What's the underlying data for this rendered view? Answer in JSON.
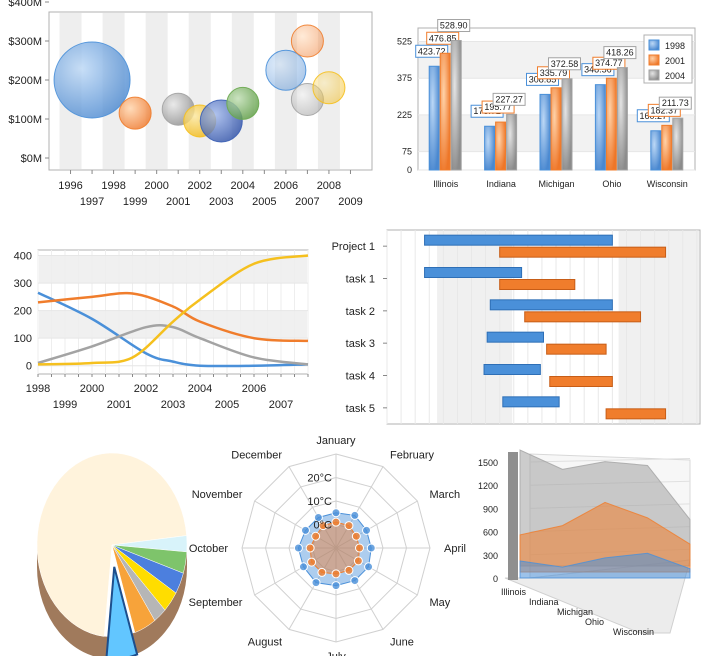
{
  "colors": {
    "blue": "#4a90d9",
    "orange": "#f07d2c",
    "gray": "#a3a3a3",
    "yellow": "#f5c01e",
    "green": "#6aa84f",
    "navy": "#3b5fb5",
    "stripe": "#eeeeee"
  },
  "chart_data": [
    {
      "type": "scatter",
      "subtype": "bubble",
      "x_ticks_top": [
        "1996",
        "1998",
        "2000",
        "2002",
        "2004",
        "2006",
        "2008"
      ],
      "x_ticks_bottom": [
        "1997",
        "1999",
        "2001",
        "2003",
        "2005",
        "2007",
        "2009"
      ],
      "y_ticks": [
        "$0M",
        "$100M",
        "$200M",
        "$300M",
        "$400M"
      ],
      "ylim": [
        0,
        400
      ],
      "xlim": [
        1995,
        2010
      ],
      "stripes": true,
      "points": [
        {
          "x": 1997.0,
          "y": 200,
          "size": 38,
          "color": "blue"
        },
        {
          "x": 1999.0,
          "y": 115,
          "size": 16,
          "color": "orange"
        },
        {
          "x": 2001.0,
          "y": 125,
          "size": 16,
          "color": "gray"
        },
        {
          "x": 2002.0,
          "y": 95,
          "size": 16,
          "color": "yellow"
        },
        {
          "x": 2003.0,
          "y": 95,
          "size": 21,
          "color": "navy"
        },
        {
          "x": 2004.0,
          "y": 140,
          "size": 16,
          "color": "green"
        },
        {
          "x": 2006.0,
          "y": 225,
          "size": 20,
          "color": "blue"
        },
        {
          "x": 2007.0,
          "y": 300,
          "size": 16,
          "color": "orange"
        },
        {
          "x": 2007.0,
          "y": 150,
          "size": 16,
          "color": "gray"
        },
        {
          "x": 2008.0,
          "y": 180,
          "size": 16,
          "color": "yellow"
        }
      ]
    },
    {
      "type": "bar",
      "categories": [
        "Illinois",
        "Indiana",
        "Michigan",
        "Ohio",
        "Wisconsin"
      ],
      "series": [
        {
          "name": "1998",
          "color": "blue",
          "values": [
            423.72,
            178.72,
            308.85,
            348.56,
            160.27
          ]
        },
        {
          "name": "2001",
          "color": "orange",
          "values": [
            476.85,
            195.77,
            335.79,
            374.77,
            182.37
          ]
        },
        {
          "name": "2004",
          "color": "gray",
          "values": [
            528.9,
            227.27,
            372.58,
            418.26,
            211.73
          ]
        }
      ],
      "y_ticks": [
        "0",
        "75",
        "225",
        "375",
        "525"
      ],
      "y_tick_values": [
        0,
        75,
        225,
        375,
        525
      ],
      "ylim": [
        0,
        580
      ],
      "legend": "top-right",
      "labeled": {
        "1998": [
          true,
          true,
          true,
          true,
          true
        ],
        "2001": [
          true,
          true,
          true,
          true,
          true
        ],
        "2004": [
          true,
          true,
          true,
          true,
          true
        ]
      }
    },
    {
      "type": "line",
      "subtype": "spline",
      "x_ticks_top": [
        "1998",
        "2000",
        "2002",
        "2004",
        "2006"
      ],
      "x_ticks_bottom": [
        "1999",
        "2001",
        "2003",
        "2005",
        "2007"
      ],
      "xlim": [
        1998,
        2008
      ],
      "y_ticks": [
        "0",
        "100",
        "200",
        "300",
        "400"
      ],
      "ylim": [
        -30,
        420
      ],
      "series": [
        {
          "color": "blue",
          "x": [
            1998,
            2000,
            2002,
            2003,
            2004,
            2006,
            2008
          ],
          "values": [
            265,
            170,
            45,
            15,
            0,
            0,
            5
          ]
        },
        {
          "color": "orange",
          "x": [
            1998,
            2000,
            2001.5,
            2003,
            2004,
            2006,
            2008
          ],
          "values": [
            230,
            250,
            262,
            215,
            160,
            100,
            90
          ]
        },
        {
          "color": "gray",
          "x": [
            1998,
            2000,
            2002,
            2003,
            2004,
            2006,
            2008
          ],
          "values": [
            10,
            70,
            140,
            140,
            100,
            30,
            5
          ]
        },
        {
          "color": "yellow",
          "x": [
            1998,
            2000,
            2001.5,
            2003,
            2004,
            2006,
            2008
          ],
          "values": [
            5,
            10,
            30,
            160,
            240,
            370,
            400
          ]
        }
      ]
    },
    {
      "type": "bar",
      "subtype": "gantt",
      "tasks": [
        "Project 1",
        "task 1",
        "task 2",
        "task 3",
        "task 4",
        "task 5"
      ],
      "xlim": [
        0,
        100
      ],
      "bars": [
        {
          "task": 0,
          "color": "blue",
          "start": 12,
          "end": 72
        },
        {
          "task": 0,
          "color": "orange",
          "start": 36,
          "end": 89
        },
        {
          "task": 1,
          "color": "blue",
          "start": 12,
          "end": 43
        },
        {
          "task": 1,
          "color": "orange",
          "start": 36,
          "end": 60
        },
        {
          "task": 2,
          "color": "blue",
          "start": 33,
          "end": 72
        },
        {
          "task": 2,
          "color": "orange",
          "start": 44,
          "end": 81
        },
        {
          "task": 3,
          "color": "blue",
          "start": 32,
          "end": 50
        },
        {
          "task": 3,
          "color": "orange",
          "start": 51,
          "end": 70
        },
        {
          "task": 4,
          "color": "blue",
          "start": 31,
          "end": 49
        },
        {
          "task": 4,
          "color": "orange",
          "start": 52,
          "end": 72
        },
        {
          "task": 5,
          "color": "blue",
          "start": 37,
          "end": 55
        },
        {
          "task": 5,
          "color": "orange",
          "start": 70,
          "end": 89
        }
      ]
    },
    {
      "type": "pie",
      "subtype": "3d",
      "slices": [
        {
          "value": 76,
          "color": "#fff3dc"
        },
        {
          "value": 3,
          "color": "#d8f3fa"
        },
        {
          "value": 4,
          "color": "#7ec46b"
        },
        {
          "value": 4,
          "color": "#4c7fde"
        },
        {
          "value": 4,
          "color": "#ffdd00"
        },
        {
          "value": 3,
          "color": "#b6b6b6"
        },
        {
          "value": 5,
          "color": "#f7a33a"
        },
        {
          "value": 7,
          "color": "#62c6ff",
          "exploded": true
        }
      ]
    },
    {
      "type": "radar",
      "categories": [
        "January",
        "February",
        "March",
        "April",
        "May",
        "June",
        "July",
        "August",
        "September",
        "October",
        "November",
        "December"
      ],
      "ring_labels": [
        "20°C",
        "10°C",
        "0°C"
      ],
      "rlim": [
        -10,
        30
      ],
      "series": [
        {
          "color": "blue",
          "values": [
            5,
            6,
            5,
            5,
            6,
            6,
            6,
            7,
            6,
            6,
            5,
            5
          ]
        },
        {
          "color": "orange",
          "values": [
            1,
            1,
            0,
            0,
            1,
            1,
            1,
            2,
            2,
            1,
            0,
            1
          ]
        }
      ]
    },
    {
      "type": "area",
      "subtype": "3d",
      "categories": [
        "Illinois",
        "Indiana",
        "Michigan",
        "Ohio",
        "Wisconsin"
      ],
      "y_ticks": [
        "0",
        "300",
        "600",
        "900",
        "1200",
        "1500"
      ],
      "ylim": [
        0,
        1500
      ],
      "series": [
        {
          "color": "blue",
          "values": [
            220,
            140,
            260,
            320,
            120
          ]
        },
        {
          "color": "orange",
          "values": [
            480,
            600,
            900,
            700,
            360
          ]
        },
        {
          "color": "gray",
          "values": [
            1500,
            1250,
            1350,
            1300,
            600
          ]
        }
      ]
    }
  ]
}
